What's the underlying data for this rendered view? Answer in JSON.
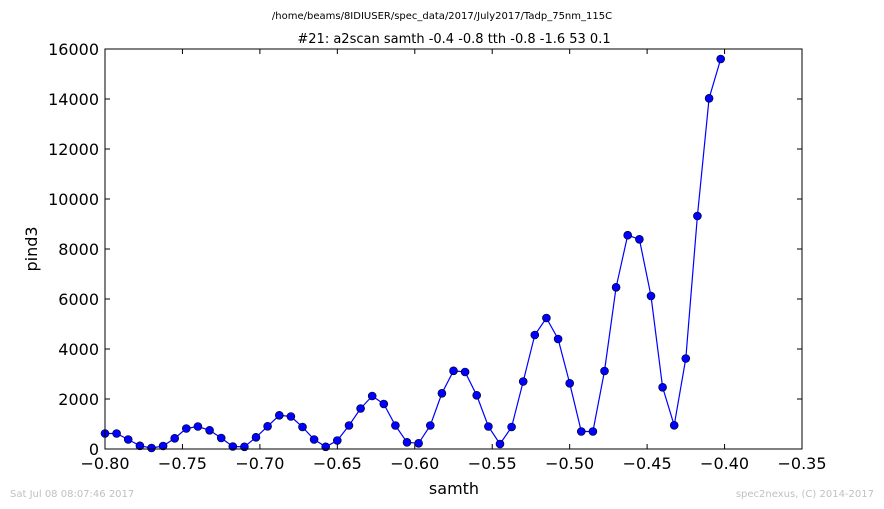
{
  "chart_data": {
    "type": "line",
    "suptitle": "/home/beams/8IDIUSER/spec_data/2017/July2017/Tadp_75nm_115C",
    "title": "#21: a2scan  samth -0.4 -0.8  tth -0.8 -1.6  53 0.1",
    "xlabel": "samth",
    "ylabel": "pind3",
    "xlim": [
      -0.8,
      -0.35
    ],
    "ylim": [
      0,
      16000
    ],
    "xticks": [
      -0.8,
      -0.75,
      -0.7,
      -0.65,
      -0.6,
      -0.55,
      -0.5,
      -0.45,
      -0.4,
      -0.35
    ],
    "xtick_labels": [
      "−0.80",
      "−0.75",
      "−0.70",
      "−0.65",
      "−0.60",
      "−0.55",
      "−0.50",
      "−0.45",
      "−0.40",
      "−0.35"
    ],
    "yticks": [
      0,
      2000,
      4000,
      6000,
      8000,
      10000,
      12000,
      14000,
      16000
    ],
    "ytick_labels": [
      "0",
      "2000",
      "4000",
      "6000",
      "8000",
      "10000",
      "12000",
      "14000",
      "16000"
    ],
    "grid": false,
    "series": [
      {
        "color": "#0000ff",
        "x": [
          -0.8,
          -0.7925,
          -0.785,
          -0.7775,
          -0.77,
          -0.7625,
          -0.755,
          -0.7475,
          -0.74,
          -0.7325,
          -0.725,
          -0.7175,
          -0.71,
          -0.7025,
          -0.695,
          -0.6875,
          -0.68,
          -0.6725,
          -0.665,
          -0.6575,
          -0.65,
          -0.6425,
          -0.635,
          -0.6275,
          -0.62,
          -0.6125,
          -0.605,
          -0.5975,
          -0.59,
          -0.5825,
          -0.575,
          -0.5675,
          -0.56,
          -0.5525,
          -0.545,
          -0.5375,
          -0.53,
          -0.5225,
          -0.515,
          -0.5075,
          -0.5,
          -0.4925,
          -0.485,
          -0.4775,
          -0.47,
          -0.4625,
          -0.455,
          -0.4475,
          -0.44,
          -0.4325,
          -0.425,
          -0.4175,
          -0.41,
          -0.4025
        ],
        "y": [
          620,
          620,
          380,
          130,
          40,
          120,
          430,
          820,
          900,
          750,
          440,
          100,
          90,
          470,
          910,
          1350,
          1300,
          880,
          380,
          90,
          340,
          940,
          1620,
          2120,
          1800,
          940,
          270,
          230,
          940,
          2230,
          3130,
          3080,
          2150,
          900,
          200,
          880,
          2700,
          4560,
          5240,
          4400,
          2630,
          700,
          700,
          3120,
          6470,
          8550,
          8390,
          6120,
          2470,
          950,
          3620,
          9320,
          14030,
          15600
        ]
      }
    ]
  },
  "footer": {
    "timestamp": "Sat Jul 08 08:07:46 2017",
    "credit": "spec2nexus, (C) 2014-2017"
  }
}
